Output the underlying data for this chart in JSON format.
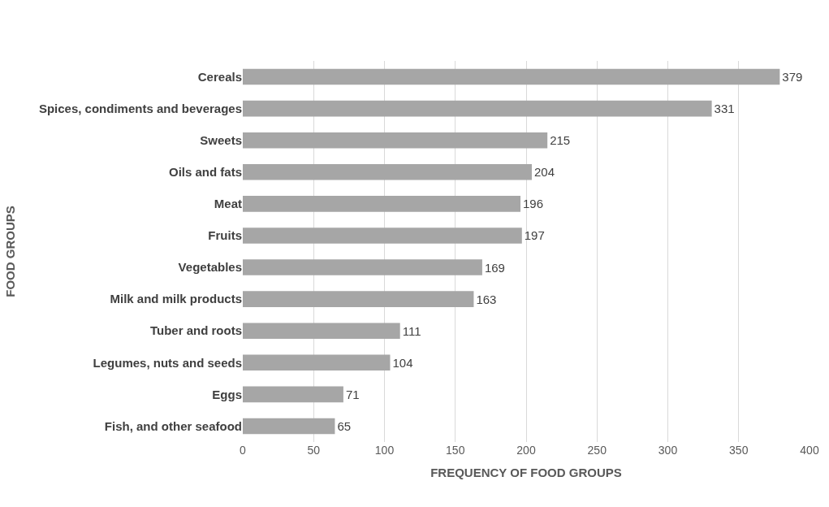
{
  "chart_data": {
    "type": "bar",
    "orientation": "horizontal",
    "xlabel": "FREQUENCY OF FOOD GROUPS",
    "ylabel": "FOOD GROUPS",
    "categories": [
      "Cereals",
      "Spices, condiments and beverages",
      "Sweets",
      "Oils and fats",
      "Meat",
      "Fruits",
      "Vegetables",
      "Milk and milk products",
      "Tuber and roots",
      "Legumes, nuts and seeds",
      "Eggs",
      "Fish, and other seafood"
    ],
    "values": [
      379,
      331,
      215,
      204,
      196,
      197,
      169,
      163,
      111,
      104,
      71,
      65
    ],
    "color": "#a6a6a6",
    "xlim": [
      0,
      400
    ],
    "xticks": [
      0,
      50,
      100,
      150,
      200,
      250,
      300,
      350,
      400
    ],
    "grid": "x",
    "data_labels": true,
    "legend": false
  }
}
